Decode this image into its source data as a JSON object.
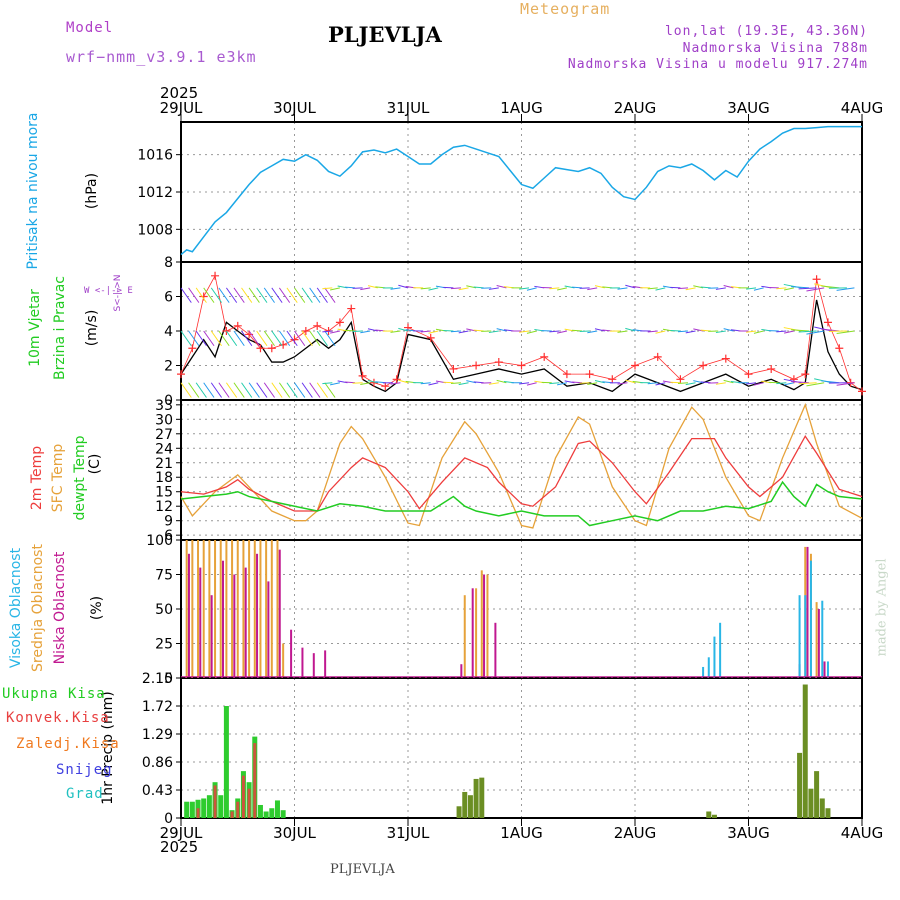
{
  "header": {
    "model_label": "Model",
    "model_name": "wrf−nmm_v3.9.1  e3km",
    "station": "PLJEVLJA",
    "product": "Meteogram",
    "lonlat": "lon,lat (19.3E, 43.36N)",
    "altitude": "Nadmorska Visina 788m",
    "model_altitude": "Nadmorska Visina u modelu 917.274m",
    "footer_station": "PLJEVLJA",
    "watermark": "made by Angel"
  },
  "colors": {
    "pressure": "#1aa7e6",
    "temp2m": "#ee3c3c",
    "sfc_temp": "#e6a23a",
    "dewpt": "#22cc22",
    "high_cloud": "#29b6e6",
    "mid_cloud": "#e6a23a",
    "low_cloud": "#c01890",
    "precip_total": "#2ecc2e",
    "precip_conv": "#e84040",
    "precip_frozen": "#f07a20",
    "precip_snow": "#4040e0",
    "precip_grad": "#20c0c0",
    "wind_mean": "#000000",
    "wind_gust": "#ff3030"
  },
  "time_axis": {
    "year": "2025",
    "days": [
      "29JUL",
      "30JUL",
      "31JUL",
      "1AUG",
      "2AUG",
      "3AUG",
      "4AUG"
    ]
  },
  "chart_data": [
    {
      "type": "line",
      "id": "pressure",
      "title": "",
      "ylabel_name": "Pritisak na nivou mora",
      "ylabel_unit": "(hPa)",
      "ylim": [
        1004.5,
        1019.5
      ],
      "yticks": [
        1008,
        1012,
        1016
      ],
      "series": [
        {
          "name": "Pritisak na nivou mora",
          "x": [
            0,
            0.05,
            0.1,
            0.2,
            0.3,
            0.4,
            0.5,
            0.6,
            0.7,
            0.8,
            0.9,
            1.0,
            1.1,
            1.2,
            1.3,
            1.4,
            1.5,
            1.6,
            1.7,
            1.8,
            1.9,
            2.0,
            2.1,
            2.2,
            2.3,
            2.4,
            2.5,
            2.6,
            2.7,
            2.8,
            2.9,
            3.0,
            3.1,
            3.2,
            3.3,
            3.4,
            3.5,
            3.6,
            3.7,
            3.8,
            3.9,
            4.0,
            4.1,
            4.2,
            4.3,
            4.4,
            4.5,
            4.6,
            4.7,
            4.8,
            4.9,
            5.0,
            5.1,
            5.2,
            5.3,
            5.4,
            5.5,
            5.6,
            5.7,
            5.8,
            5.9,
            6.0
          ],
          "values": [
            1005.3,
            1005.8,
            1005.6,
            1007.2,
            1008.8,
            1009.8,
            1011.3,
            1012.8,
            1014.1,
            1014.8,
            1015.5,
            1015.3,
            1016.0,
            1015.4,
            1014.2,
            1013.7,
            1014.8,
            1016.3,
            1016.5,
            1016.2,
            1016.6,
            1015.8,
            1015.0,
            1015.0,
            1016.0,
            1016.8,
            1017.0,
            1016.6,
            1016.2,
            1015.8,
            1014.3,
            1012.8,
            1012.4,
            1013.5,
            1014.6,
            1014.4,
            1014.2,
            1014.6,
            1014.0,
            1012.5,
            1011.5,
            1011.2,
            1012.5,
            1014.2,
            1014.8,
            1014.6,
            1015.0,
            1014.3,
            1013.3,
            1014.3,
            1013.6,
            1015.3,
            1016.6,
            1017.4,
            1018.3,
            1018.8,
            1018.8,
            1018.9,
            1019.0,
            1019.0,
            1019.0,
            1019.0
          ]
        }
      ]
    },
    {
      "type": "line",
      "id": "wind",
      "ylabel_name_1": "10m Vjetar",
      "ylabel_name_2": "Brzina i Pravac",
      "ylabel_unit": "(m/s)",
      "compass_label": "W <-|-> E",
      "compass_vertical": "S<-|->N",
      "ylim": [
        0,
        8
      ],
      "yticks": [
        0,
        2,
        4,
        6,
        8
      ],
      "series": [
        {
          "name": "Brzina vjetra",
          "x": [
            0,
            0.1,
            0.2,
            0.3,
            0.4,
            0.5,
            0.6,
            0.7,
            0.8,
            0.9,
            1.0,
            1.1,
            1.2,
            1.3,
            1.4,
            1.5,
            1.6,
            1.7,
            1.8,
            1.9,
            2.0,
            2.2,
            2.4,
            2.6,
            2.8,
            3.0,
            3.2,
            3.4,
            3.6,
            3.8,
            4.0,
            4.2,
            4.4,
            4.6,
            4.8,
            5.0,
            5.2,
            5.4,
            5.5,
            5.6,
            5.7,
            5.8,
            5.9,
            6.0
          ],
          "values": [
            1.5,
            2.5,
            3.5,
            2.5,
            4.5,
            4.0,
            3.5,
            3.2,
            2.2,
            2.2,
            2.5,
            3.0,
            3.5,
            3.0,
            3.5,
            4.5,
            1.2,
            0.8,
            0.5,
            1.0,
            3.8,
            3.5,
            1.2,
            1.5,
            1.8,
            1.5,
            1.8,
            0.8,
            1.0,
            0.5,
            1.5,
            1.0,
            0.5,
            1.0,
            1.5,
            0.8,
            1.2,
            0.6,
            1.0,
            5.8,
            2.8,
            1.5,
            0.8,
            0.6
          ]
        },
        {
          "name": "Udari vjetra",
          "x": [
            0,
            0.1,
            0.2,
            0.3,
            0.4,
            0.5,
            0.6,
            0.7,
            0.8,
            0.9,
            1.0,
            1.1,
            1.2,
            1.3,
            1.4,
            1.5,
            1.6,
            1.7,
            1.8,
            1.9,
            2.0,
            2.2,
            2.4,
            2.6,
            2.8,
            3.0,
            3.2,
            3.4,
            3.6,
            3.8,
            4.0,
            4.2,
            4.4,
            4.6,
            4.8,
            5.0,
            5.2,
            5.4,
            5.5,
            5.6,
            5.7,
            5.8,
            5.9,
            6.0
          ],
          "values": [
            1.5,
            3.0,
            6.0,
            7.2,
            4.0,
            4.3,
            3.8,
            3.0,
            3.0,
            3.2,
            3.5,
            4.0,
            4.3,
            4.0,
            4.5,
            5.3,
            1.4,
            1.0,
            0.8,
            1.2,
            4.2,
            3.6,
            1.8,
            2.0,
            2.2,
            2.0,
            2.5,
            1.5,
            1.5,
            1.2,
            2.0,
            2.5,
            1.2,
            2.0,
            2.4,
            1.5,
            1.8,
            1.2,
            1.5,
            7.0,
            4.5,
            3.0,
            1.0,
            0.5
          ]
        }
      ]
    },
    {
      "type": "line",
      "id": "temperature",
      "ylabel_name_1": "2m Temp",
      "ylabel_name_2": "SFC Temp",
      "ylabel_name_3": "dewpt Temp",
      "ylabel_unit": "(C)",
      "ylim": [
        5,
        34
      ],
      "yticks": [
        6,
        9,
        12,
        15,
        18,
        21,
        24,
        27,
        30,
        33
      ],
      "series": [
        {
          "name": "2m Temp",
          "x": [
            0,
            0.2,
            0.4,
            0.5,
            0.6,
            0.8,
            1.0,
            1.2,
            1.3,
            1.5,
            1.6,
            1.8,
            2.0,
            2.1,
            2.3,
            2.5,
            2.7,
            2.8,
            3.0,
            3.1,
            3.3,
            3.5,
            3.6,
            3.8,
            4.0,
            4.1,
            4.3,
            4.5,
            4.7,
            4.8,
            5.0,
            5.1,
            5.3,
            5.5,
            5.6,
            5.8,
            6.0
          ],
          "values": [
            15,
            14.5,
            16,
            17.5,
            15.5,
            13,
            11,
            11,
            15,
            20,
            22,
            20,
            15,
            11.5,
            17,
            22,
            20,
            17,
            12.5,
            12,
            16,
            25,
            25.5,
            21,
            15,
            12.5,
            19,
            26,
            26,
            22,
            16,
            14,
            18,
            26.5,
            23,
            15.5,
            14
          ]
        },
        {
          "name": "SFC Temp",
          "x": [
            0,
            0.1,
            0.3,
            0.5,
            0.6,
            0.8,
            1.0,
            1.1,
            1.2,
            1.4,
            1.5,
            1.6,
            1.8,
            2.0,
            2.1,
            2.3,
            2.5,
            2.6,
            2.8,
            3.0,
            3.1,
            3.3,
            3.5,
            3.6,
            3.8,
            4.0,
            4.1,
            4.3,
            4.5,
            4.6,
            4.8,
            5.0,
            5.1,
            5.3,
            5.5,
            5.6,
            5.8,
            6.0
          ],
          "values": [
            14,
            10,
            15,
            18.5,
            16,
            11,
            9,
            9,
            11,
            25,
            28.5,
            26,
            18,
            8.5,
            8,
            22,
            29.5,
            27,
            19,
            8,
            7.5,
            22,
            30.5,
            29,
            16,
            9,
            8,
            24,
            32.5,
            30,
            18,
            10,
            9,
            22,
            33,
            25,
            12,
            9.5
          ]
        },
        {
          "name": "dewpt Temp",
          "x": [
            0,
            0.2,
            0.4,
            0.5,
            0.6,
            0.8,
            1.0,
            1.2,
            1.4,
            1.6,
            1.8,
            2.0,
            2.2,
            2.4,
            2.5,
            2.6,
            2.8,
            3.0,
            3.2,
            3.4,
            3.5,
            3.6,
            3.8,
            4.0,
            4.2,
            4.4,
            4.6,
            4.8,
            5.0,
            5.2,
            5.3,
            5.4,
            5.5,
            5.6,
            5.7,
            5.8,
            6.0
          ],
          "values": [
            13.5,
            14,
            14.5,
            15,
            14,
            13,
            12,
            11,
            12.5,
            12,
            11,
            11,
            11,
            14,
            12,
            11,
            10,
            11,
            10,
            10,
            10,
            8,
            9,
            10,
            9,
            11,
            11,
            12,
            11.5,
            13,
            17,
            14,
            12,
            16.5,
            15,
            14,
            13.5
          ]
        }
      ]
    },
    {
      "type": "bar",
      "id": "cloud",
      "ylabel_name_1": "Visoka Oblacnost",
      "ylabel_name_2": "Srednja Oblacnost",
      "ylabel_name_3": "Niska Oblacnost",
      "ylabel_unit": "(%)",
      "ylim": [
        0,
        100
      ],
      "yticks": [
        0,
        25,
        50,
        75,
        100
      ],
      "series": [
        {
          "name": "Srednja Oblacnost",
          "x": [
            0.05,
            0.1,
            0.15,
            0.2,
            0.25,
            0.3,
            0.35,
            0.4,
            0.45,
            0.5,
            0.55,
            0.6,
            0.65,
            0.7,
            0.75,
            0.8,
            0.85,
            0.9,
            2.5,
            2.6,
            2.65,
            2.7,
            2.75,
            5.5,
            5.55,
            5.6
          ],
          "values": [
            100,
            100,
            100,
            100,
            100,
            100,
            100,
            100,
            100,
            100,
            100,
            100,
            100,
            100,
            100,
            100,
            100,
            25,
            60,
            65,
            78,
            75,
            0,
            95,
            90,
            55
          ]
        },
        {
          "name": "Niska Oblacnost",
          "x": [
            0.07,
            0.17,
            0.27,
            0.37,
            0.47,
            0.57,
            0.67,
            0.77,
            0.87,
            0.97,
            1.07,
            1.17,
            1.27,
            2.47,
            2.57,
            2.67,
            2.77,
            5.45,
            5.52,
            5.62,
            5.67
          ],
          "values": [
            90,
            80,
            60,
            85,
            75,
            80,
            90,
            70,
            93,
            35,
            22,
            18,
            20,
            10,
            65,
            75,
            40,
            10,
            95,
            50,
            12
          ]
        },
        {
          "name": "Visoka Oblacnost",
          "x": [
            4.6,
            4.65,
            4.7,
            4.75,
            5.45,
            5.5,
            5.55,
            5.65,
            5.7
          ],
          "values": [
            8,
            15,
            30,
            40,
            60,
            60,
            85,
            56,
            12
          ]
        }
      ]
    },
    {
      "type": "bar",
      "id": "precip",
      "ylabel_name": "1hr Precip (mm)",
      "legend": [
        "Ukupna Kisa",
        "Konvek.Kisa",
        "Zaledj.Kisa",
        "Snijeg",
        "Grad"
      ],
      "ylim": [
        0,
        2.15
      ],
      "yticks": [
        0,
        0.43,
        0.86,
        1.29,
        1.72,
        2.15
      ],
      "series": [
        {
          "name": "Ukupna Kisa",
          "x": [
            0.05,
            0.1,
            0.15,
            0.2,
            0.25,
            0.3,
            0.35,
            0.4,
            0.45,
            0.5,
            0.55,
            0.6,
            0.65,
            0.7,
            0.75,
            0.8,
            0.85,
            0.9,
            2.45,
            2.5,
            2.55,
            2.6,
            2.65,
            4.65,
            4.7,
            5.45,
            5.5,
            5.55,
            5.6,
            5.65,
            5.7
          ],
          "values": [
            0.25,
            0.25,
            0.28,
            0.3,
            0.35,
            0.55,
            0.35,
            1.72,
            0.12,
            0.3,
            0.72,
            0.55,
            1.25,
            0.2,
            0.1,
            0.15,
            0.27,
            0.12,
            0.18,
            0.4,
            0.35,
            0.6,
            0.62,
            0.1,
            0.05,
            1.0,
            2.05,
            0.45,
            0.72,
            0.3,
            0.15
          ]
        },
        {
          "name": "Konvek.Kisa",
          "x": [
            0.15,
            0.3,
            0.45,
            0.5,
            0.55,
            0.6,
            0.65
          ],
          "values": [
            0.15,
            0.5,
            0.1,
            0.25,
            0.65,
            0.45,
            1.15
          ]
        }
      ]
    }
  ]
}
